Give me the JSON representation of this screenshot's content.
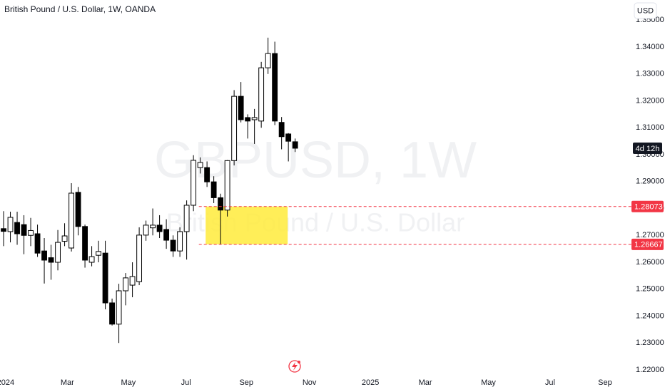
{
  "chart_data": {
    "type": "candlestick",
    "title": "British Pound / U.S. Dollar, 1W, OANDA",
    "currency": "USD",
    "watermark": [
      "GBPUSD, 1W",
      "British Pound / U.S. Dollar"
    ],
    "countdown": "4d 12h",
    "up_color": "#ffffff",
    "down_color": "#000000",
    "open": [
      1.2725,
      1.2714,
      1.2748,
      1.274,
      1.27,
      1.2706,
      1.2642,
      1.2617,
      1.26,
      1.2678,
      1.2653,
      1.286,
      1.2733,
      1.26,
      1.2626,
      1.2634,
      1.2449,
      1.237,
      1.2494,
      1.2515,
      1.2528,
      1.2701,
      1.2728,
      1.2738,
      1.2722,
      1.2682,
      1.2642,
      1.2714,
      1.2812,
      1.2952,
      1.2952,
      1.2899,
      1.284,
      1.2794,
      1.2978,
      1.3217,
      1.3138,
      1.313,
      1.3125,
      1.3323,
      1.3376,
      1.312,
      1.3077,
      1.3048
    ],
    "high": [
      1.279,
      1.2788,
      1.2788,
      1.2775,
      1.2765,
      1.274,
      1.269,
      1.2665,
      1.272,
      1.2745,
      1.2894,
      1.288,
      1.274,
      1.266,
      1.268,
      1.268,
      1.2465,
      1.252,
      1.256,
      1.26,
      1.273,
      1.2755,
      1.28,
      1.2775,
      1.276,
      1.27,
      1.273,
      1.283,
      1.2998,
      1.299,
      1.2975,
      1.292,
      1.2855,
      1.298,
      1.324,
      1.327,
      1.315,
      1.317,
      1.3345,
      1.3435,
      1.342,
      1.314,
      1.308,
      1.306
    ],
    "low": [
      1.266,
      1.2674,
      1.2665,
      1.263,
      1.266,
      1.262,
      1.2521,
      1.2535,
      1.257,
      1.266,
      1.264,
      1.27,
      1.258,
      1.2585,
      1.26,
      1.2425,
      1.2365,
      1.23,
      1.244,
      1.247,
      1.2515,
      1.268,
      1.27,
      1.269,
      1.265,
      1.262,
      1.262,
      1.261,
      1.279,
      1.293,
      1.288,
      1.282,
      1.2665,
      1.277,
      1.296,
      1.312,
      1.306,
      1.304,
      1.31,
      1.33,
      1.311,
      1.302,
      1.2975,
      1.301
    ],
    "close": [
      1.2715,
      1.2767,
      1.2706,
      1.27,
      1.2718,
      1.2634,
      1.2608,
      1.26,
      1.2674,
      1.2698,
      1.2857,
      1.2733,
      1.2608,
      1.2621,
      1.264,
      1.2449,
      1.237,
      1.2494,
      1.2542,
      1.2547,
      1.2701,
      1.2738,
      1.2738,
      1.2714,
      1.2682,
      1.2642,
      1.2714,
      1.2812,
      1.2979,
      1.2971,
      1.2899,
      1.284,
      1.2794,
      1.2978,
      1.3217,
      1.313,
      1.3125,
      1.3138,
      1.3323,
      1.3376,
      1.3125,
      1.3067,
      1.305,
      1.3024
    ],
    "xlim": [
      -0.53,
      92.6
    ],
    "xticks": [
      {
        "value": 0.3,
        "label": "2024"
      },
      {
        "value": 9.4,
        "label": "Mar"
      },
      {
        "value": 18.4,
        "label": "May"
      },
      {
        "value": 26.9,
        "label": "Jul"
      },
      {
        "value": 35.8,
        "label": "Sep"
      },
      {
        "value": 45.1,
        "label": "Nov"
      },
      {
        "value": 54.1,
        "label": "2025"
      },
      {
        "value": 62.2,
        "label": "Mar"
      },
      {
        "value": 71.5,
        "label": "May"
      },
      {
        "value": 80.6,
        "label": "Jul"
      },
      {
        "value": 88.7,
        "label": "Sep"
      }
    ],
    "ylim": [
      1.2184,
      1.3575
    ],
    "yticks": [
      {
        "value": 1.22,
        "label": "1.22000"
      },
      {
        "value": 1.23,
        "label": "1.23000"
      },
      {
        "value": 1.24,
        "label": "1.24000"
      },
      {
        "value": 1.25,
        "label": "1.25000"
      },
      {
        "value": 1.26,
        "label": "1.26000"
      },
      {
        "value": 1.27,
        "label": "1.27000"
      },
      {
        "value": 1.28,
        "label": "1.28000"
      },
      {
        "value": 1.29,
        "label": "1.29000"
      },
      {
        "value": 1.3,
        "label": "1.30000"
      },
      {
        "value": 1.31,
        "label": "1.31000"
      },
      {
        "value": 1.32,
        "label": "1.32000"
      },
      {
        "value": 1.33,
        "label": "1.33000"
      },
      {
        "value": 1.34,
        "label": "1.34000"
      },
      {
        "value": 1.35,
        "label": "1.35000"
      }
    ],
    "zone": {
      "x": [
        29.8,
        41.9
      ],
      "y": [
        1.26667,
        1.28073
      ],
      "color": "#ffeb3b"
    },
    "levels": [
      1.28073,
      1.26667
    ],
    "level_color": "#f23645",
    "level_start": 28.8
  }
}
